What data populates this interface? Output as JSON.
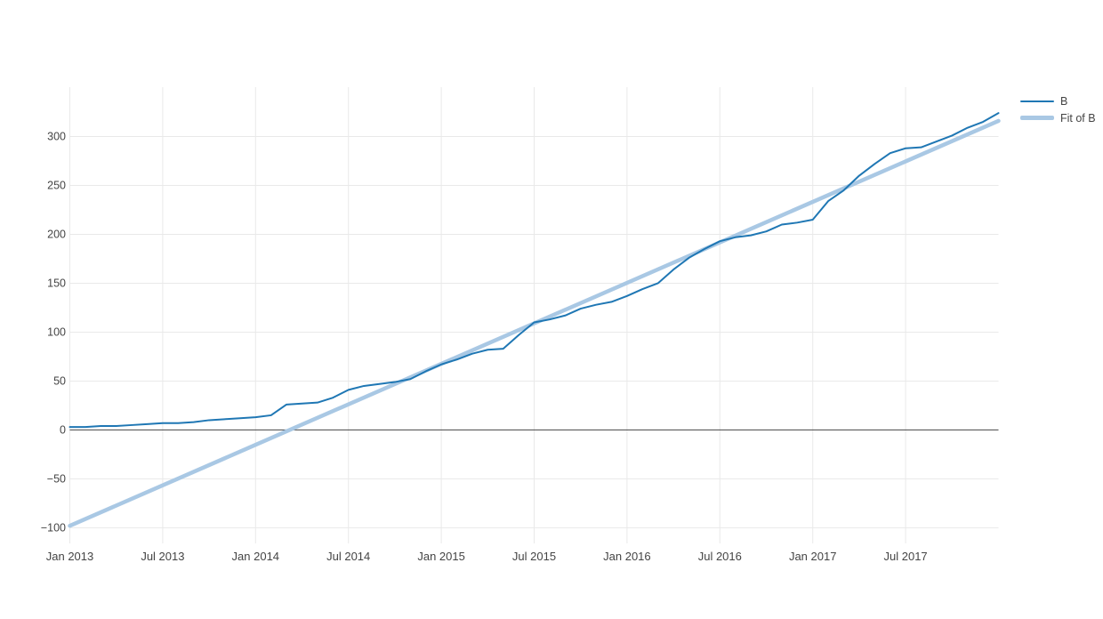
{
  "chart_data": {
    "type": "line",
    "title": "",
    "xlabel": "",
    "ylabel": "",
    "x_axis": {
      "tick_labels": [
        "Jan 2013",
        "Jul 2013",
        "Jan 2014",
        "Jul 2014",
        "Jan 2015",
        "Jul 2015",
        "Jan 2016",
        "Jul 2016",
        "Jan 2017",
        "Jul 2017"
      ],
      "tick_months": [
        0,
        6,
        12,
        18,
        24,
        30,
        36,
        42,
        48,
        54
      ],
      "range_months": [
        0,
        60
      ],
      "data_start": "2013-01",
      "data_end": "2018-01",
      "grid": true
    },
    "y_axis": {
      "ticks": [
        -100,
        -50,
        0,
        50,
        100,
        150,
        200,
        250,
        300
      ],
      "tick_labels": [
        "−100",
        "−50",
        "0",
        "50",
        "100",
        "150",
        "200",
        "250",
        "300"
      ],
      "range": [
        -116,
        350.5
      ],
      "grid": true,
      "zero_line": true
    },
    "series": [
      {
        "name": "B",
        "color": "#1f77b4",
        "width": 2,
        "x_step_months": 1,
        "x_start_month": 0,
        "values": [
          3,
          3,
          4,
          4,
          5,
          6,
          7,
          7,
          8,
          10,
          11,
          12,
          13,
          15,
          26,
          27,
          28,
          33,
          41,
          45,
          47,
          49,
          52,
          60,
          67,
          72,
          78,
          82,
          83,
          97,
          110,
          113,
          117,
          124,
          128,
          131,
          137,
          144,
          150,
          164,
          176,
          185,
          193,
          197,
          199,
          203,
          210,
          212,
          215,
          234,
          245,
          260,
          272,
          283,
          288,
          289,
          295,
          301,
          309,
          315,
          324
        ]
      },
      {
        "name": "Fit of B",
        "color": "#a9c8e4",
        "width": 4.5,
        "points_months": [
          0,
          60
        ],
        "values": [
          -98,
          316
        ]
      }
    ],
    "legend_position": "top-right-outside",
    "grid_color": "#e9e9e9",
    "zero_line_color": "#444444",
    "tick_text_color": "#444444",
    "background_color": "#ffffff"
  },
  "legend": {
    "items": [
      {
        "label": "B"
      },
      {
        "label": "Fit of B"
      }
    ]
  }
}
